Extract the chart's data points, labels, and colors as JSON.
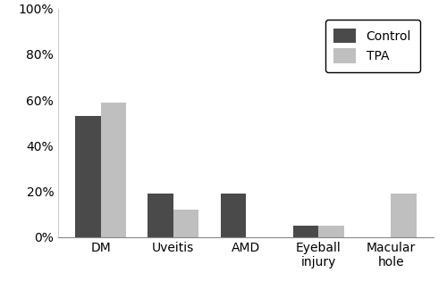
{
  "categories": [
    "DM",
    "Uveitis",
    "AMD",
    "Eyeball\ninjury",
    "Macular\nhole"
  ],
  "control_values": [
    0.53,
    0.19,
    0.19,
    0.05,
    0.0
  ],
  "tpa_values": [
    0.59,
    0.12,
    0.0,
    0.05,
    0.19
  ],
  "control_color": "#4a4a4a",
  "tpa_color": "#c0bfbf",
  "legend_labels": [
    "Control",
    "TPA"
  ],
  "ylim": [
    0,
    1.0
  ],
  "yticks": [
    0,
    0.2,
    0.4,
    0.6,
    0.8,
    1.0
  ],
  "ytick_labels": [
    "0%",
    "20%",
    "40%",
    "60%",
    "80%",
    "100%"
  ],
  "bar_width": 0.35,
  "figsize": [
    5.0,
    3.24
  ],
  "dpi": 100
}
